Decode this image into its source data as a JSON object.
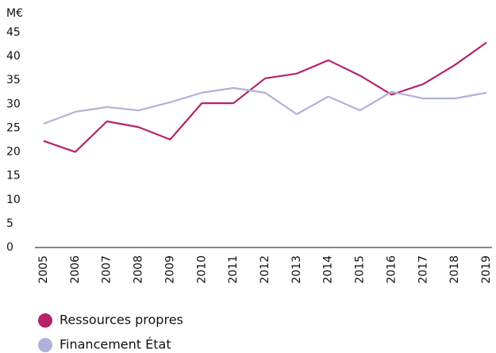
{
  "chart_data": {
    "type": "line",
    "y_label": "M€",
    "categories": [
      "2005",
      "2006",
      "2007",
      "2008",
      "2009",
      "2010",
      "2011",
      "2012",
      "2013",
      "2014",
      "2015",
      "2016",
      "2017",
      "2018",
      "2019"
    ],
    "series": [
      {
        "name": "Ressources propres",
        "color": "#b5246a",
        "values": [
          22.3,
          20,
          26.4,
          25.2,
          22.6,
          30.2,
          30.2,
          35.4,
          36.4,
          39.2,
          36,
          32,
          34.2,
          38.2,
          42.9
        ]
      },
      {
        "name": "Financement État",
        "color": "#aeb2d8",
        "values": [
          25.9,
          28.4,
          29.4,
          28.7,
          30.4,
          32.4,
          33.4,
          32.4,
          27.9,
          31.6,
          28.7,
          32.6,
          31.2,
          31.2,
          32.4
        ]
      }
    ],
    "ylim": [
      0,
      45
    ],
    "yticks": [
      0,
      5,
      10,
      15,
      20,
      25,
      30,
      35,
      40,
      45
    ],
    "grid": false
  }
}
